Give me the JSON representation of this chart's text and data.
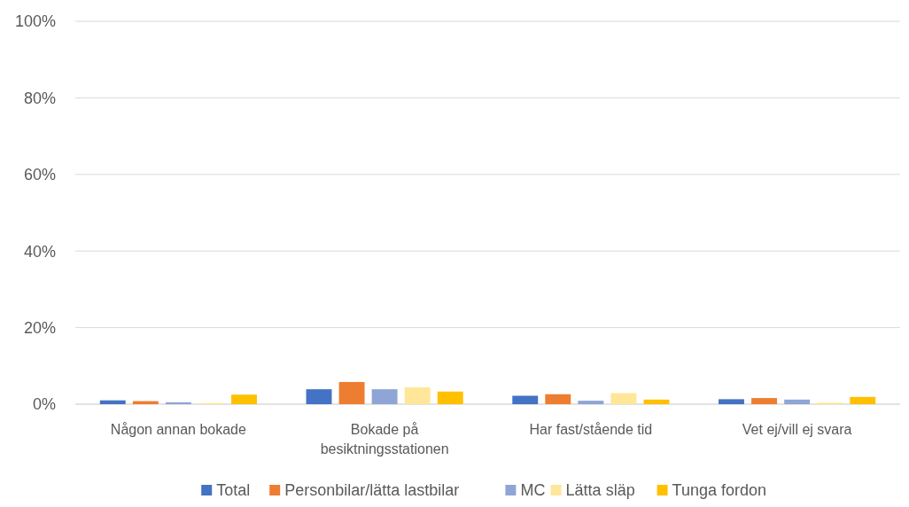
{
  "chart_data": {
    "type": "bar",
    "categories": [
      "Någon annan bokade",
      "Bokade på besiktningsstationen",
      "Har fast/stående tid",
      "Vet ej/vill ej svara"
    ],
    "series": [
      {
        "name": "Total",
        "color": "#4472c4",
        "values": [
          1.0,
          3.9,
          2.2,
          1.3
        ]
      },
      {
        "name": "Personbilar/lätta lastbilar",
        "color": "#ed7d31",
        "values": [
          0.8,
          5.8,
          2.6,
          1.6
        ]
      },
      {
        "name": "MC",
        "color": "#8fa5d6",
        "values": [
          0.5,
          3.9,
          0.9,
          1.2
        ]
      },
      {
        "name": "Lätta släp",
        "color": "#ffe699",
        "values": [
          0.3,
          4.4,
          2.9,
          0.4
        ]
      },
      {
        "name": "Tunga fordon",
        "color": "#ffc000",
        "values": [
          2.5,
          3.3,
          1.2,
          1.9
        ]
      }
    ],
    "ylim": [
      0,
      100
    ],
    "yticks": [
      {
        "value": 0,
        "label": "0%"
      },
      {
        "value": 20,
        "label": "20%"
      },
      {
        "value": 40,
        "label": "40%"
      },
      {
        "value": 60,
        "label": "60%"
      },
      {
        "value": 80,
        "label": "80%"
      },
      {
        "value": 100,
        "label": "100%"
      }
    ],
    "grid": "y",
    "legend": "bottom"
  }
}
